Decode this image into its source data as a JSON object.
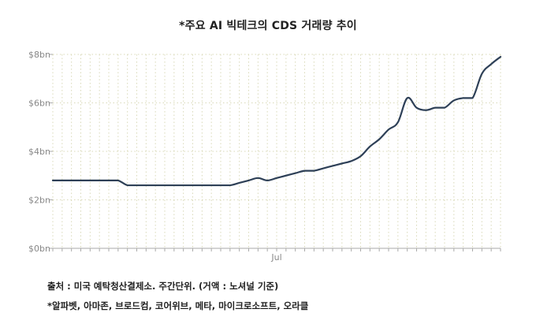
{
  "title": "*주요 AI 빅테크의 CDS 거래량 추이",
  "source_note": "출처 : 미국 예탁청산결제소. 주간단위. (거액 : 노셔널 기준)",
  "footnote": "*알파벳, 아마존, 브로드컴, 코어위브, 메타, 마이크로소프트, 오라클",
  "colors": {
    "line": "#2e4057",
    "grid": "#d9d9b8",
    "axis": "#aaaaaa",
    "tick_text": "#888888"
  },
  "chart_data": {
    "type": "line",
    "title": "*주요 AI 빅테크의 CDS 거래량 추이",
    "xlabel": "",
    "ylabel": "",
    "ylim": [
      0,
      8
    ],
    "y_ticks": [
      0,
      2,
      4,
      6,
      8
    ],
    "y_tick_labels": [
      "$0bn",
      "$2bn",
      "$4bn",
      "$6bn",
      "$8bn"
    ],
    "x_tick_labels": [
      {
        "label": "Jul",
        "index": 24
      }
    ],
    "grid": true,
    "legend": "none",
    "series": [
      {
        "values": [
          2.8,
          2.8,
          2.8,
          2.8,
          2.8,
          2.8,
          2.8,
          2.8,
          2.6,
          2.6,
          2.6,
          2.6,
          2.6,
          2.6,
          2.6,
          2.6,
          2.6,
          2.6,
          2.6,
          2.6,
          2.7,
          2.8,
          2.9,
          2.8,
          2.9,
          3.0,
          3.1,
          3.2,
          3.2,
          3.3,
          3.4,
          3.5,
          3.6,
          3.8,
          4.2,
          4.5,
          4.9,
          5.2,
          6.2,
          5.8,
          5.7,
          5.8,
          5.8,
          6.1,
          6.2,
          6.2,
          7.2,
          7.6,
          7.9
        ]
      }
    ]
  }
}
